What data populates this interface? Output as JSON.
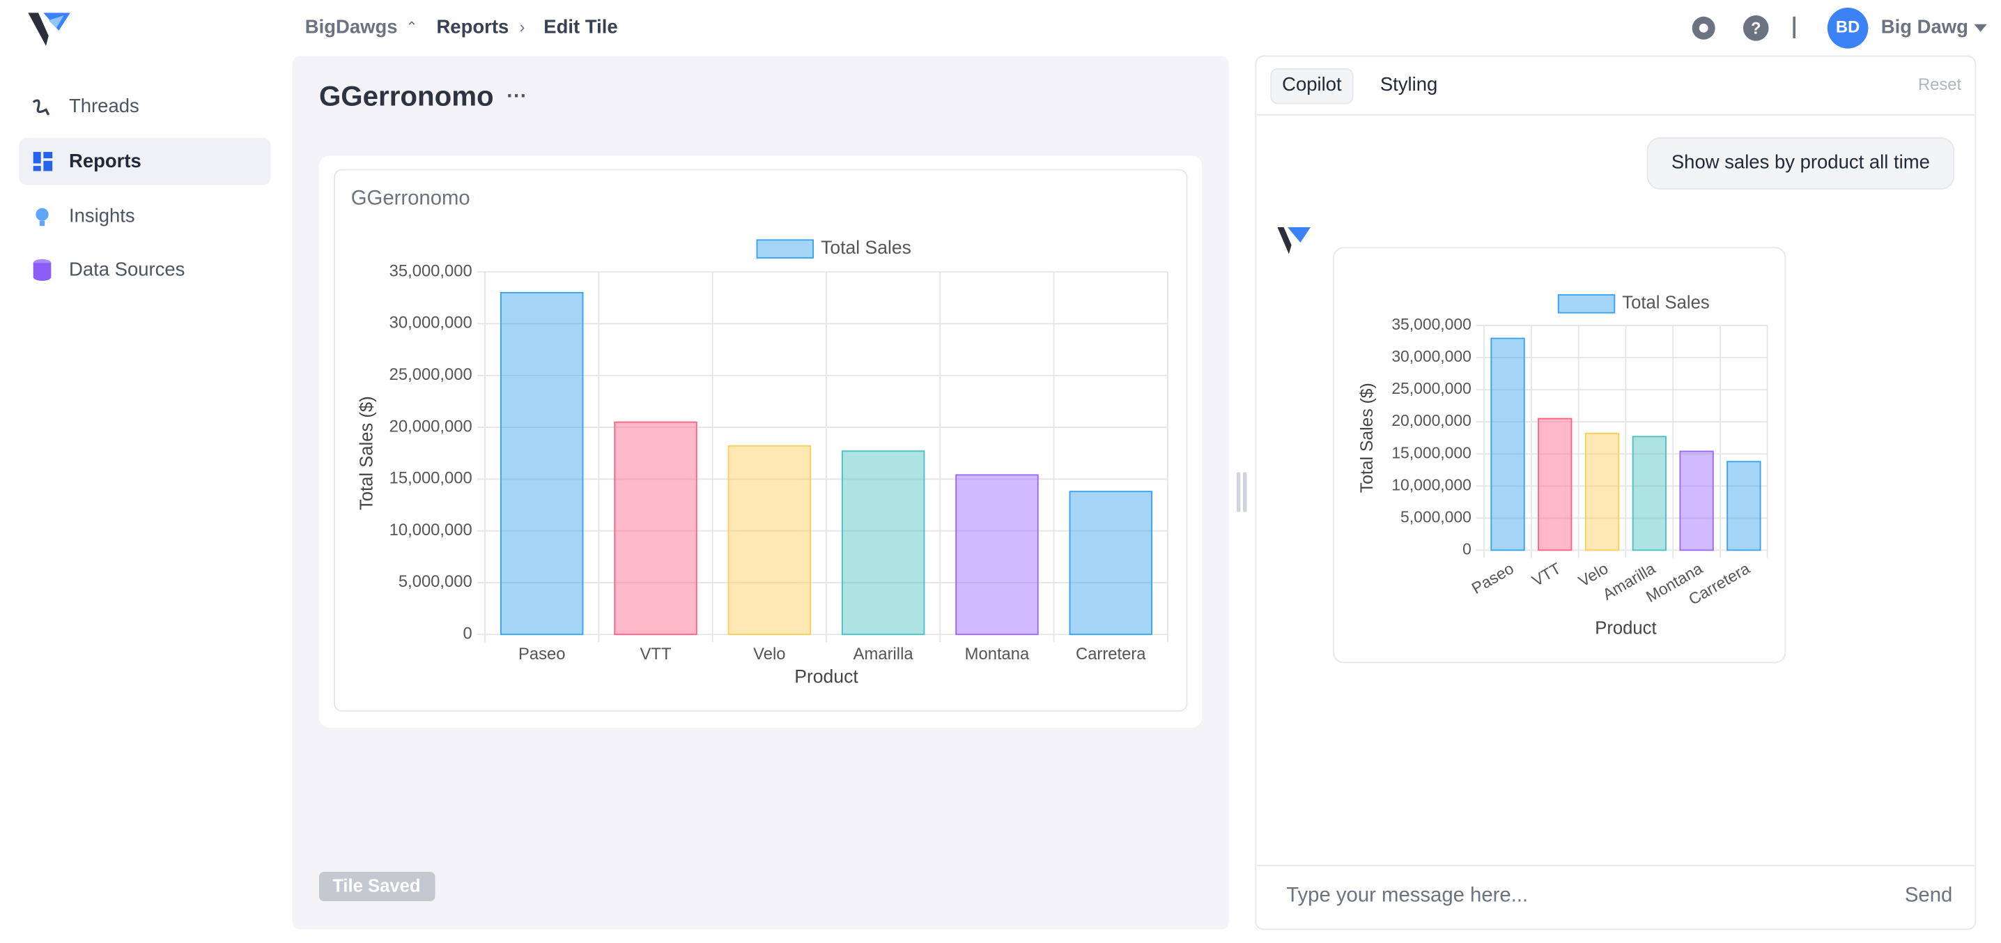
{
  "header": {
    "workspace": "BigDawgs",
    "section": "Reports",
    "page": "Edit Tile",
    "avatar": "BD",
    "user": "Big Dawg"
  },
  "sidebar": [
    "Threads",
    "Reports",
    "Insights",
    "Data Sources"
  ],
  "tile": {
    "name": "GGerronomo",
    "status": "Tile Saved"
  },
  "copilot": {
    "tabs": [
      "Copilot",
      "Styling"
    ],
    "reset": "Reset",
    "user_message": "Show sales by product all time",
    "placeholder": "Type your message here...",
    "send": "Send"
  },
  "chart_data": [
    {
      "type": "bar",
      "title": "GGerronomo",
      "x_label": "Product",
      "y_label": "Total Sales ($)",
      "categories": [
        "Paseo",
        "VTT",
        "Velo",
        "Amarilla",
        "Montana",
        "Carretera"
      ],
      "series": [
        {
          "name": "Total Sales",
          "values": [
            33000000,
            20500000,
            18200000,
            17700000,
            15400000,
            13800000
          ],
          "colors": [
            "#36a2eb",
            "#ff6384",
            "#ffcd56",
            "#4bc0c0",
            "#9966ff",
            "#36a2eb"
          ]
        }
      ],
      "ylim": [
        0,
        35000000
      ],
      "yticks": [
        0,
        {
          "value": 5000000,
          "label": "5,000,000"
        },
        {
          "value": 10000000,
          "label": "10,000,000"
        },
        {
          "value": 15000000,
          "label": "15,000,000"
        },
        {
          "value": 20000000,
          "label": "20,000,000"
        },
        {
          "value": 25000000,
          "label": "25,000,000"
        },
        {
          "value": 30000000,
          "label": "30,000,000"
        },
        {
          "value": 35000000,
          "label": "35,000,000"
        }
      ],
      "grid": true,
      "legend": "top"
    },
    {
      "type": "bar",
      "x_label": "Product",
      "y_label": "Total Sales ($)",
      "categories": [
        "Paseo",
        "VTT",
        "Velo",
        "Amarilla",
        "Montana",
        "Carretera"
      ],
      "series": [
        {
          "name": "Total Sales",
          "values": [
            33000000,
            20500000,
            18200000,
            17700000,
            15400000,
            13800000
          ],
          "colors": [
            "#36a2eb",
            "#ff6384",
            "#ffcd56",
            "#4bc0c0",
            "#9966ff",
            "#36a2eb"
          ]
        }
      ],
      "ylim": [
        0,
        35000000
      ],
      "yticks": [
        0,
        {
          "value": 5000000,
          "label": "5,000,000"
        },
        {
          "value": 10000000,
          "label": "10,000,000"
        },
        {
          "value": 15000000,
          "label": "15,000,000"
        },
        {
          "value": 20000000,
          "label": "20,000,000"
        },
        {
          "value": 25000000,
          "label": "25,000,000"
        },
        {
          "value": 30000000,
          "label": "30,000,000"
        },
        {
          "value": 35000000,
          "label": "35,000,000"
        }
      ],
      "grid": true,
      "legend": "top"
    }
  ]
}
